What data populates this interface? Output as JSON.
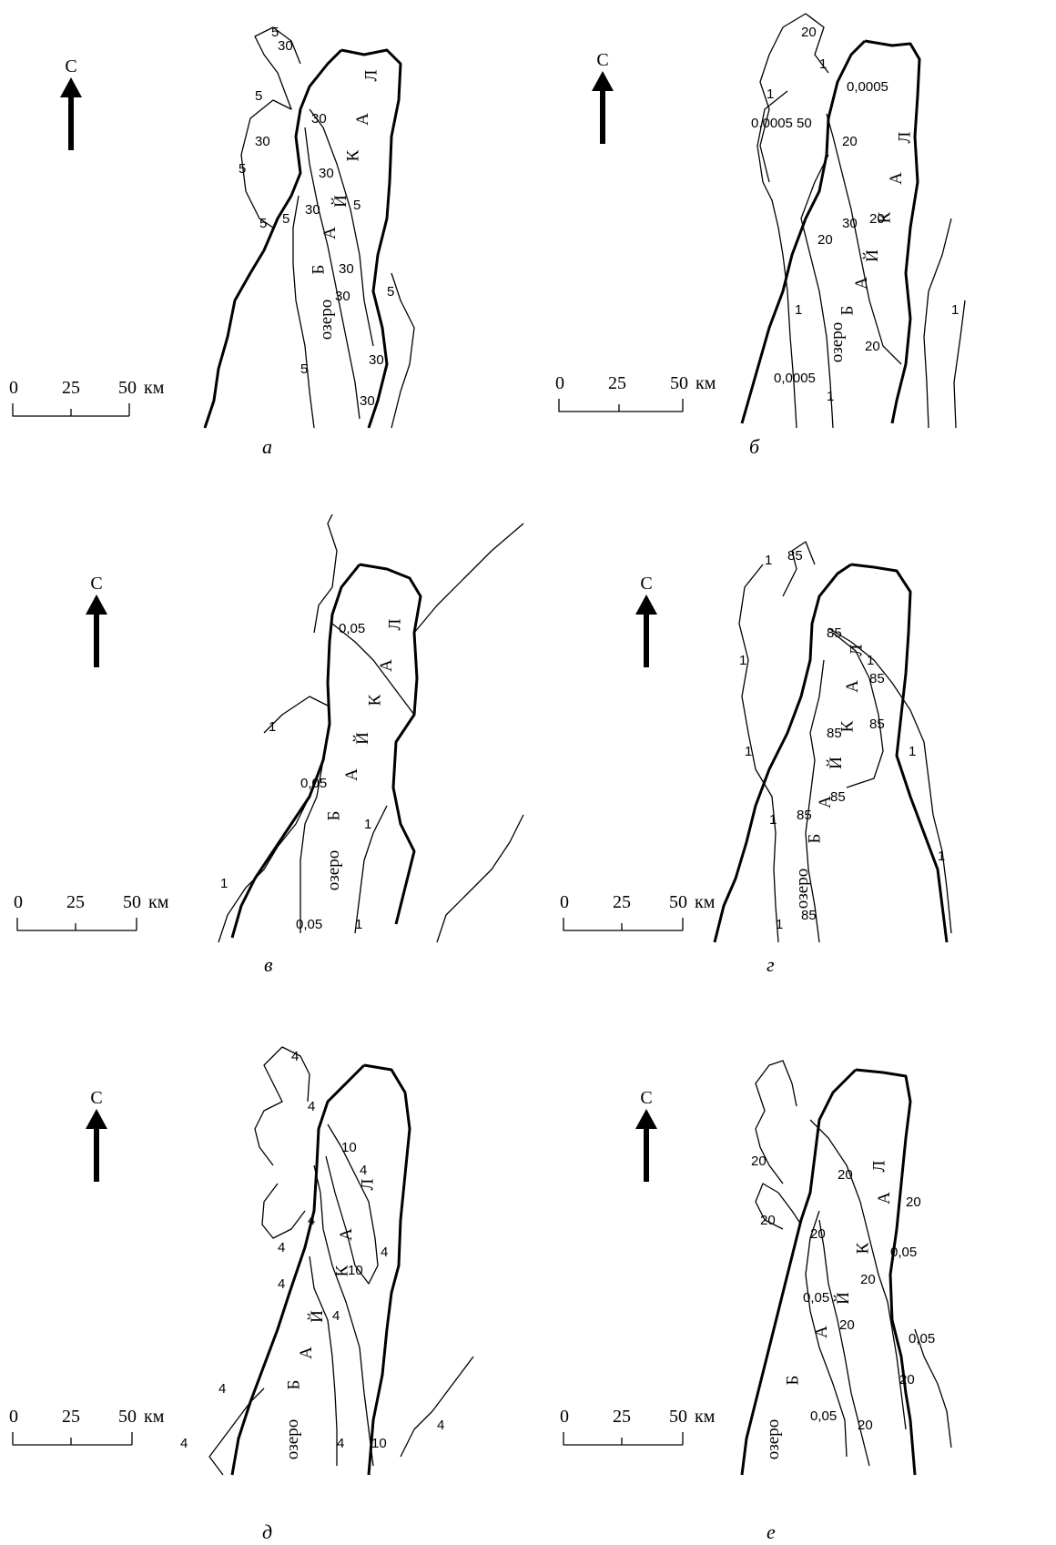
{
  "north_label": "С",
  "scale": {
    "s0": "0",
    "s25": "25",
    "s50": "50",
    "unit": "км"
  },
  "lake": {
    "word": "озеро",
    "name_letters": [
      "Б",
      "А",
      "Й",
      "К",
      "А",
      "Л"
    ]
  },
  "panels": [
    {
      "id": "a",
      "caption": "а",
      "isolines": [
        "5",
        "30",
        "5",
        "30",
        "5",
        "30",
        "30",
        "30",
        "5",
        "5",
        "30",
        "30",
        "5",
        "5",
        "5",
        "30",
        "30"
      ]
    },
    {
      "id": "b",
      "caption": "б",
      "isolines": [
        "20",
        "1",
        "0,0005",
        "1",
        "50",
        "20",
        "0,0005",
        "30",
        "20",
        "20",
        "1",
        "1",
        "20",
        "0,0005",
        "1"
      ]
    },
    {
      "id": "v",
      "caption": "в",
      "isolines": [
        "0,05",
        "1",
        "0,05",
        "1",
        "1",
        "0,05",
        "1"
      ]
    },
    {
      "id": "g",
      "caption": "г",
      "isolines": [
        "85",
        "1",
        "85",
        "1",
        "1",
        "85",
        "85",
        "85",
        "85",
        "1",
        "1",
        "85",
        "1",
        "1",
        "85",
        "1"
      ]
    },
    {
      "id": "d",
      "caption": "д",
      "isolines": [
        "4",
        "4",
        "10",
        "4",
        "4",
        "10",
        "4",
        "4",
        "4",
        "4",
        "4",
        "10",
        "4",
        "4",
        "4"
      ]
    },
    {
      "id": "e",
      "caption": "е",
      "isolines": [
        "20",
        "20",
        "20",
        "20",
        "0,05",
        "20",
        "0,05",
        "20",
        "0,05",
        "20",
        "20",
        "0,05",
        "20"
      ]
    }
  ]
}
